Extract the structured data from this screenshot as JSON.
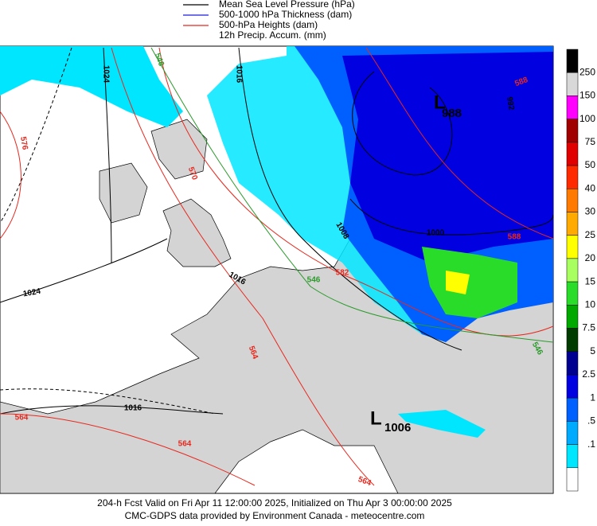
{
  "legend": [
    {
      "label": "Mean Sea Level Pressure (hPa)",
      "color": "#000000"
    },
    {
      "label": "500-1000 hPa Thickness (dam)",
      "color": "#1a1adc"
    },
    {
      "label": "500-hPa Heights (dam)",
      "color": "#e8281e"
    },
    {
      "label": "12h Precip. Accum. (mm)",
      "color": null
    }
  ],
  "colorbar": {
    "colors": [
      "#000000",
      "#d8d8d8",
      "#ff00ff",
      "#a00000",
      "#e00000",
      "#ff2a00",
      "#ff7a00",
      "#ffaa00",
      "#ffff00",
      "#a8ff60",
      "#2adc2a",
      "#00a800",
      "#003c00",
      "#000090",
      "#0000e0",
      "#0060ff",
      "#00aaff",
      "#00e6ff",
      "#ffffff"
    ],
    "labels": [
      "250",
      "150",
      "100",
      "75",
      "50",
      "40",
      "30",
      "25",
      "20",
      "15",
      "10",
      "7.5",
      "5",
      "2.5",
      "1",
      ".5",
      ".1"
    ]
  },
  "pressure_labels": [
    "1024",
    "1016",
    "1024",
    "1016",
    "1016",
    "1008",
    "1000",
    "992"
  ],
  "thickness_labels": [
    "546",
    "546",
    "546",
    "552"
  ],
  "height_labels": [
    "564",
    "564",
    "564",
    "564",
    "570",
    "576",
    "582",
    "588",
    "588"
  ],
  "lows": [
    {
      "symbol": "L",
      "value": "988"
    },
    {
      "symbol": "L",
      "value": "1006"
    }
  ],
  "footer": [
    "204-h Fcst Valid on Fri Apr 11 12:00:00 2025, Initialized on Thu Apr  3 00:00:00 2025",
    "CMC-GDPS data provided by Environment Canada - meteocentre.com"
  ]
}
